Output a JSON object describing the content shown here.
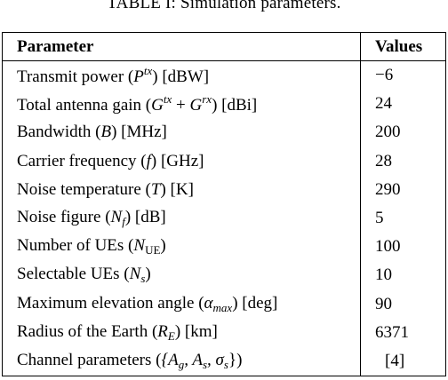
{
  "caption": "TABLE I: Simulation parameters.",
  "header": {
    "parameter": "Parameter",
    "values": "Values"
  },
  "rows": [
    {
      "pre": "Transmit power (",
      "sym": "P",
      "sup": "tx",
      "post": ") [dBW]",
      "value": "−6"
    },
    {
      "pre": "Total antenna gain (",
      "sym1": "G",
      "sup1": "tx",
      "plus": " + ",
      "sym2": "G",
      "sup2": "rx",
      "post": ") [dBi]",
      "value": "24"
    },
    {
      "pre": "Bandwidth (",
      "sym": "B",
      "post": ") [MHz]",
      "value": "200"
    },
    {
      "pre": "Carrier frequency (",
      "sym": "f",
      "post": ") [GHz]",
      "value": "28"
    },
    {
      "pre": "Noise temperature (",
      "sym": "T",
      "post": ") [K]",
      "value": "290"
    },
    {
      "pre": "Noise figure (",
      "sym": "N",
      "sub": "f",
      "post": ") [dB]",
      "value": "5"
    },
    {
      "pre": "Number of UEs (",
      "sym": "N",
      "sub": "UE",
      "post": ")",
      "value": "100"
    },
    {
      "pre": "Selectable UEs (",
      "sym": "N",
      "sub": "s",
      "post": ")",
      "value": "10"
    },
    {
      "pre": "Maximum elevation angle (",
      "sym": "α",
      "sub": "max",
      "post": ") [deg]",
      "value": "90"
    },
    {
      "pre": "Radius of the Earth (",
      "sym": "R",
      "sub": "E",
      "post": ") [km]",
      "value": "6371"
    },
    {
      "pre": "Channel parameters (",
      "set": "{A",
      "g": "g",
      "s1": ", A",
      "s": "s",
      "s2": ", σ",
      "ss": "s",
      "close": "})",
      "value": "[4]"
    }
  ]
}
